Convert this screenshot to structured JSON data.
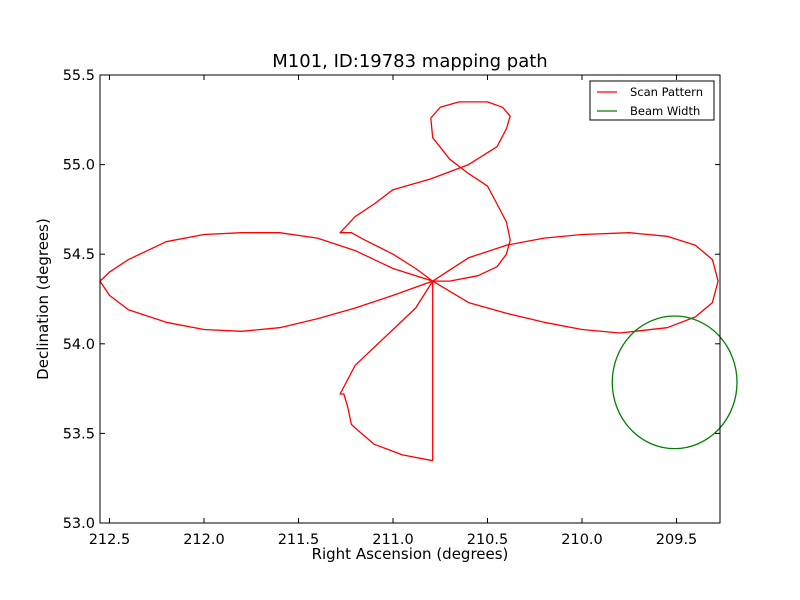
{
  "chart_data": {
    "type": "line",
    "title": "M101, ID:19783 mapping path",
    "xlabel": "Right Ascension (degrees)",
    "ylabel": "Declination (degrees)",
    "xlim": [
      212.55,
      209.27
    ],
    "ylim": [
      53.0,
      55.5
    ],
    "xticks": [
      212.5,
      212.0,
      211.5,
      211.0,
      210.5,
      210.0,
      209.5
    ],
    "xtick_labels": [
      "212.5",
      "212.0",
      "211.5",
      "211.0",
      "210.5",
      "210.0",
      "209.5"
    ],
    "yticks": [
      53.0,
      53.5,
      54.0,
      54.5,
      55.0,
      55.5
    ],
    "ytick_labels": [
      "53.0",
      "53.5",
      "54.0",
      "54.5",
      "55.0",
      "55.5"
    ],
    "grid": false,
    "legend_position": "top-right",
    "series": [
      {
        "name": "Scan Pattern",
        "color": "#ff0000",
        "x": [
          210.79,
          210.6,
          210.4,
          210.2,
          210.0,
          209.75,
          209.55,
          209.4,
          209.31,
          209.28,
          209.31,
          209.4,
          209.55,
          209.8,
          210.0,
          210.2,
          210.4,
          210.6,
          210.79,
          210.88,
          211.0,
          211.15,
          211.22,
          211.28,
          211.2,
          211.1,
          211.0,
          210.8,
          210.6,
          210.45,
          210.4,
          210.38,
          210.42,
          210.5,
          210.65,
          210.75,
          210.8,
          210.79,
          210.7,
          210.6,
          210.5,
          210.45,
          210.4,
          210.38,
          210.4,
          210.45,
          210.55,
          210.7,
          210.79,
          210.79,
          210.8,
          210.95,
          211.1,
          211.2,
          211.22,
          211.24,
          211.26,
          211.28,
          211.2,
          211.1,
          211.0,
          210.88,
          210.79,
          211.0,
          211.2,
          211.4,
          211.6,
          211.8,
          212.0,
          212.2,
          212.4,
          212.5,
          212.55,
          212.5,
          212.4,
          212.2,
          212.0,
          211.8,
          211.6,
          211.4,
          211.2,
          211.0,
          210.79
        ],
        "y": [
          54.35,
          54.48,
          54.55,
          54.59,
          54.61,
          54.62,
          54.6,
          54.55,
          54.47,
          54.35,
          54.23,
          54.15,
          54.09,
          54.06,
          54.08,
          54.12,
          54.17,
          54.23,
          54.35,
          54.42,
          54.5,
          54.58,
          54.62,
          54.62,
          54.71,
          54.78,
          54.86,
          54.92,
          55.0,
          55.1,
          55.2,
          55.27,
          55.32,
          55.35,
          55.35,
          55.32,
          55.26,
          55.15,
          55.03,
          54.95,
          54.88,
          54.78,
          54.68,
          54.58,
          54.5,
          54.43,
          54.38,
          54.35,
          54.35,
          53.35,
          53.35,
          53.38,
          53.44,
          53.53,
          53.55,
          53.65,
          53.72,
          53.72,
          53.88,
          53.98,
          54.08,
          54.2,
          54.35,
          54.42,
          54.52,
          54.59,
          54.62,
          54.62,
          54.61,
          54.57,
          54.47,
          54.4,
          54.35,
          54.27,
          54.19,
          54.12,
          54.08,
          54.07,
          54.09,
          54.14,
          54.2,
          54.27,
          54.35
        ]
      },
      {
        "name": "Beam Width",
        "color": "#008000",
        "center": [
          209.51,
          53.785
        ],
        "radius_ra": 0.33,
        "radius_dec": 0.37
      }
    ]
  }
}
